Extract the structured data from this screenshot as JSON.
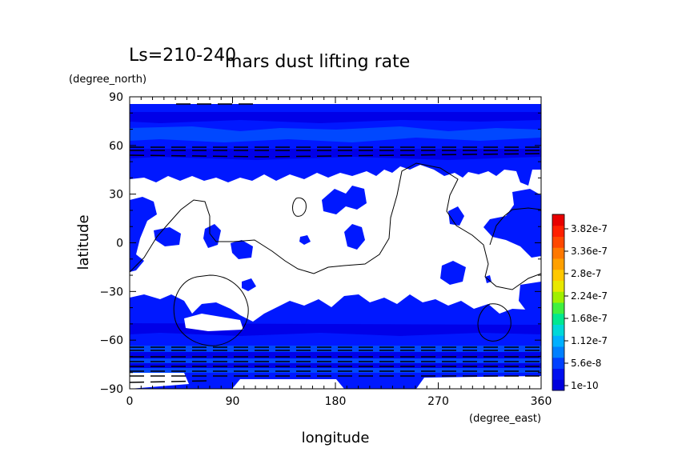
{
  "chart_data": {
    "type": "heatmap",
    "title": "mars dust lifting rate",
    "subtitle": "Ls=210-240",
    "xlabel": "longitude",
    "ylabel": "latitude",
    "x_units": "(degree_east)",
    "y_units": "(degree_north)",
    "xlim": [
      0,
      360
    ],
    "ylim": [
      -90,
      90
    ],
    "x_ticks": [
      "0",
      "90",
      "180",
      "270",
      "360"
    ],
    "y_ticks": [
      "90",
      "60",
      "30",
      "0",
      "−30",
      "−60",
      "−90"
    ],
    "colorbar": {
      "labels": [
        "1e-10",
        "5.6e-8",
        "1.12e-7",
        "1.68e-7",
        "2.24e-7",
        "2.8e-7",
        "3.36e-7",
        "3.82e-7"
      ],
      "colors": [
        "#0000dd",
        "#0010f0",
        "#0040ff",
        "#0080ff",
        "#00b0ff",
        "#00d8d8",
        "#00e890",
        "#40f040",
        "#a0f000",
        "#e8e800",
        "#ffc800",
        "#ffa000",
        "#ff7800",
        "#ff4800",
        "#ff2000",
        "#e80000"
      ]
    },
    "fill_colors": {
      "dark": "#0000e8",
      "mid": "#0018ff",
      "light": "#0040ff",
      "lighter": "#0060ff"
    },
    "regions": {
      "northern_band_lat": [
        50,
        85
      ],
      "southern_band_lat": [
        -83,
        -35
      ]
    }
  }
}
